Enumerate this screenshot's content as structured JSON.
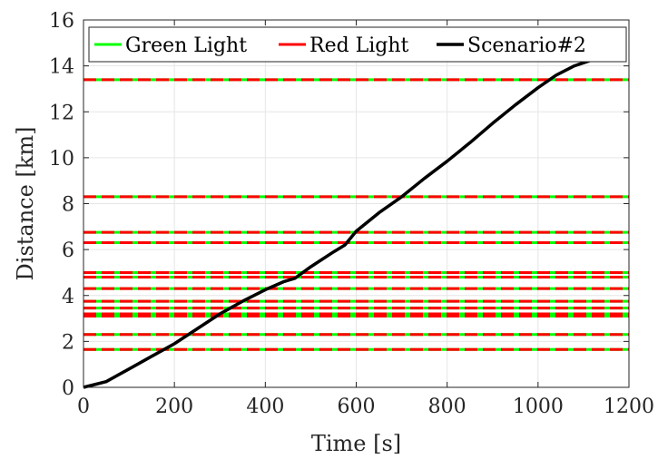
{
  "chart_data": {
    "type": "line",
    "xlabel": "Time [s]",
    "ylabel": "Distance [km]",
    "xlim": [
      0,
      1200
    ],
    "ylim": [
      0,
      16
    ],
    "xticks": [
      0,
      200,
      400,
      600,
      800,
      1000,
      1200
    ],
    "yticks": [
      0,
      2,
      4,
      6,
      8,
      10,
      12,
      14,
      16
    ],
    "grid": true,
    "legend_position": "top",
    "legend": [
      "Green Light",
      "Red Light",
      "Scenario#2"
    ],
    "colors": {
      "green": "#00ff00",
      "red": "#ff0000",
      "scenario": "#000000"
    },
    "traffic_lights_km": [
      1.65,
      2.3,
      3.1,
      3.2,
      3.45,
      3.75,
      4.3,
      4.8,
      5.0,
      6.3,
      6.75,
      8.3,
      13.4
    ],
    "series": [
      {
        "name": "Scenario#2",
        "x": [
          0,
          20,
          50,
          100,
          150,
          200,
          250,
          300,
          350,
          400,
          440,
          465,
          500,
          550,
          575,
          600,
          650,
          700,
          750,
          800,
          850,
          900,
          950,
          1000,
          1040,
          1080,
          1110,
          1130
        ],
        "y": [
          0,
          0.1,
          0.25,
          0.8,
          1.35,
          1.9,
          2.55,
          3.2,
          3.75,
          4.25,
          4.6,
          4.75,
          5.25,
          5.9,
          6.2,
          6.8,
          7.6,
          8.3,
          9.1,
          9.85,
          10.65,
          11.5,
          12.3,
          13.05,
          13.6,
          14.0,
          14.2,
          14.35
        ]
      }
    ]
  }
}
